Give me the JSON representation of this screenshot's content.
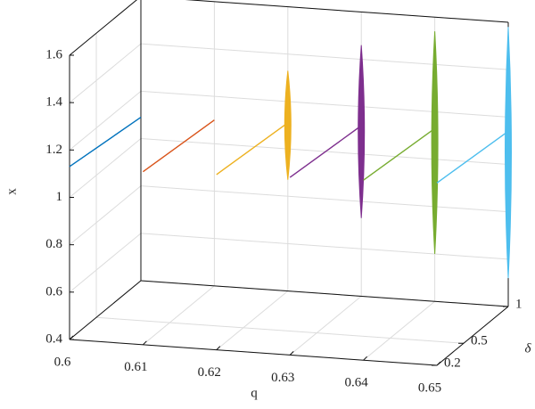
{
  "chart_data": {
    "type": "line3d",
    "x_label": "q",
    "y_label": "δ",
    "z_label": "x",
    "xlim": [
      0.6,
      0.65
    ],
    "xticks": [
      0.6,
      0.61,
      0.62,
      0.63,
      0.64,
      0.65
    ],
    "ylim": [
      0.2,
      1
    ],
    "yticks": [
      0.2,
      0.5,
      1
    ],
    "zlim": [
      0.4,
      1.6
    ],
    "zticks": [
      0.4,
      0.6,
      0.8,
      1,
      1.2,
      1.4,
      1.6
    ],
    "grid": true,
    "series": [
      {
        "color": "#0072bd",
        "x": 0.6,
        "y": [
          0.2,
          1
        ],
        "values": [
          1.13,
          1.09
        ]
      },
      {
        "color": "#d95319",
        "x": 0.61,
        "y": [
          0.2,
          1
        ],
        "values": [
          1.13,
          1.1
        ]
      },
      {
        "color": "#edb120",
        "x": 0.62,
        "y": [
          0.2,
          1
        ],
        "values": [
          1.14,
          1.11
        ],
        "spread": [
          0.87,
          1.33
        ]
      },
      {
        "color": "#7e2f8e",
        "x": 0.63,
        "y": [
          0.2,
          1
        ],
        "values": [
          1.15,
          1.12
        ],
        "spread": [
          0.73,
          1.46
        ]
      },
      {
        "color": "#77ac30",
        "x": 0.64,
        "y": [
          0.2,
          1
        ],
        "values": [
          1.16,
          1.13
        ],
        "spread": [
          0.6,
          1.54
        ]
      },
      {
        "color": "#4dbeee",
        "x": 0.65,
        "y": [
          0.2,
          1
        ],
        "values": [
          1.17,
          1.14
        ],
        "spread": [
          0.52,
          1.58
        ]
      }
    ]
  }
}
